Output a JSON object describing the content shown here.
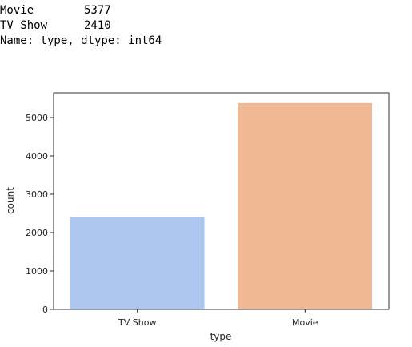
{
  "console_output": {
    "rows": [
      {
        "label": "Movie",
        "value": "5377"
      },
      {
        "label": "TV Show",
        "value": "2410"
      }
    ],
    "footer": "Name: type, dtype: int64"
  },
  "chart_data": {
    "type": "bar",
    "categories": [
      "TV Show",
      "Movie"
    ],
    "values": [
      2410,
      5377
    ],
    "colors": [
      "#aec7f0",
      "#f1b894"
    ],
    "xlabel": "type",
    "ylabel": "count",
    "ylim": [
      0,
      5646
    ],
    "yticks": [
      0,
      1000,
      2000,
      3000,
      4000,
      5000
    ],
    "grid": false
  }
}
